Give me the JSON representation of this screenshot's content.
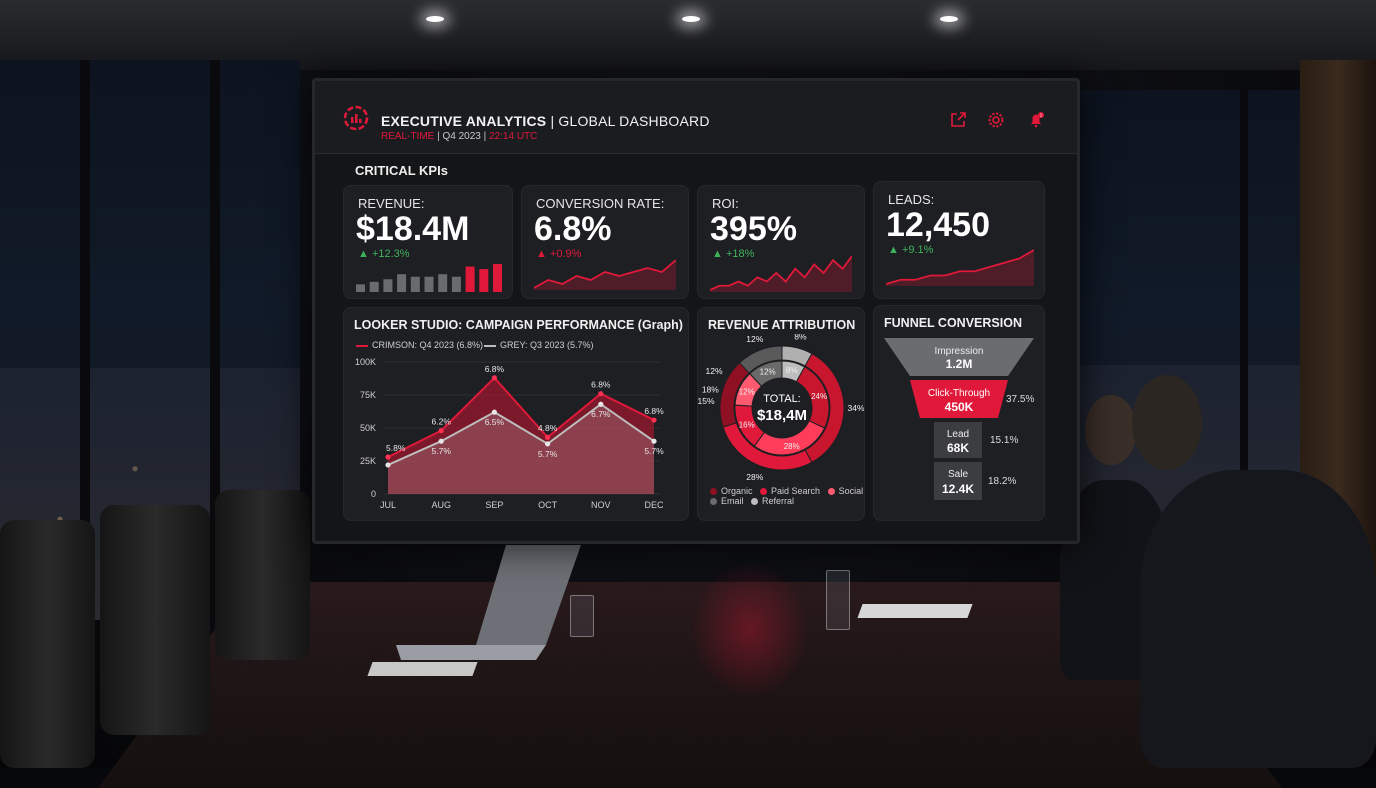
{
  "header": {
    "title_bold": "EXECUTIVE ANALYTICS",
    "title_rest": " | GLOBAL DASHBOARD",
    "sub_realtime": "REAL-TIME",
    "sub_quarter": " | Q4 2023 | ",
    "sub_time": "22:14 UTC",
    "icons": [
      "external-link-icon",
      "gear-icon",
      "bell-icon"
    ],
    "notification_count": "1"
  },
  "kpi_section_label": "CRITICAL KPIs",
  "kpis": [
    {
      "label": "REVENUE:",
      "value": "$18.4M",
      "delta": "▲ +12.3%"
    },
    {
      "label": "CONVERSION RATE:",
      "value": "6.8%",
      "delta": "▲ +0.9%"
    },
    {
      "label": "ROI:",
      "value": "395%",
      "delta": "▲ +18%"
    },
    {
      "label": "LEADS:",
      "value": "12,450",
      "delta": "▲ +9.1%"
    }
  ],
  "campaign": {
    "title": "LOOKER STUDIO: CAMPAIGN PERFORMANCE (Graph)",
    "legend_crimson": "CRIMSON: Q4 2023 (6.8%)",
    "legend_grey": "GREY: Q3 2023 (5.7%)"
  },
  "attribution": {
    "title": "REVENUE ATTRIBUTION",
    "total_label": "TOTAL:",
    "total_value": "$18,4M",
    "legend": [
      "Organic",
      "Paid Search",
      "Social",
      "Email",
      "Referral"
    ]
  },
  "funnel": {
    "title": "FUNNEL CONVERSION",
    "stages": [
      {
        "name": "Impression",
        "value": "1.2M",
        "rate": ""
      },
      {
        "name": "Click-Through",
        "value": "450K",
        "rate": "37.5%"
      },
      {
        "name": "Lead",
        "value": "68K",
        "rate": "15.1%"
      },
      {
        "name": "Sale",
        "value": "12.4K",
        "rate": "18.2%"
      }
    ]
  },
  "colors": {
    "accent": "#e0193a",
    "grey": "#9a9a9a",
    "panel": "#1e1f22",
    "positive": "#3fb35c"
  },
  "chart_data": [
    {
      "type": "line",
      "title": "LOOKER STUDIO: CAMPAIGN PERFORMANCE (Graph)",
      "categories": [
        "JUL",
        "AUG",
        "SEP",
        "OCT",
        "NOV",
        "DEC"
      ],
      "y_tick_labels": [
        "0",
        "25K",
        "50K",
        "75K",
        "100K"
      ],
      "ylim": [
        0,
        100
      ],
      "series": [
        {
          "name": "CRIMSON: Q4 2023 (6.8%)",
          "values": [
            28,
            48,
            88,
            43,
            76,
            56
          ],
          "labels": [
            "5.8%",
            "6.2%",
            "6.8%",
            "4.8%",
            "6.8%",
            "6.8%"
          ],
          "color": "#e0193a"
        },
        {
          "name": "GREY: Q3 2023 (5.7%)",
          "values": [
            22,
            40,
            62,
            38,
            68,
            40
          ],
          "labels": [
            "",
            "5.7%",
            "6.5%",
            "5.7%",
            "6.7%",
            "5.7%"
          ],
          "color": "#bdbdbd"
        }
      ]
    },
    {
      "type": "pie",
      "title": "REVENUE ATTRIBUTION",
      "outer_ring": [
        {
          "label": "8%",
          "value": 8,
          "color": "#b0b0b0"
        },
        {
          "label": "34%",
          "value": 34,
          "color": "#c9162f"
        },
        {
          "label": "28%",
          "value": 28,
          "color": "#e0193a"
        },
        {
          "label": "18%",
          "value": 18,
          "color": "#8e1022"
        },
        {
          "label": "12%",
          "value": 12,
          "color": "#5a5a5a"
        }
      ],
      "inner_ring": [
        {
          "label": "8%",
          "value": 8,
          "color": "#bdbdbd"
        },
        {
          "label": "24%",
          "value": 24,
          "color": "#c9162f"
        },
        {
          "label": "28%",
          "value": 28,
          "color": "#ff3d5a"
        },
        {
          "label": "16%",
          "value": 16,
          "color": "#e0193a"
        },
        {
          "label": "12%",
          "value": 12,
          "color": "#ff5a70"
        },
        {
          "label": "12%",
          "value": 12,
          "color": "#6a6a6a"
        }
      ],
      "outer_side_labels": [
        "12%",
        "15%"
      ]
    },
    {
      "type": "bar",
      "name": "revenue-sparkline",
      "values": [
        3,
        4,
        5,
        7,
        6,
        6,
        7,
        6,
        10,
        9,
        11
      ]
    },
    {
      "type": "line",
      "name": "conversion-sparkline",
      "values": [
        2,
        4,
        3,
        5,
        4,
        6,
        5,
        6,
        7,
        6,
        9
      ]
    },
    {
      "type": "line",
      "name": "roi-sparkline",
      "values": [
        1,
        2,
        2,
        3,
        2,
        4,
        3,
        5,
        3,
        6,
        4,
        7,
        5,
        8,
        6,
        9
      ]
    },
    {
      "type": "line",
      "name": "leads-sparkline",
      "values": [
        1,
        2,
        2,
        3,
        3,
        4,
        4,
        5,
        6,
        7,
        9
      ]
    }
  ]
}
